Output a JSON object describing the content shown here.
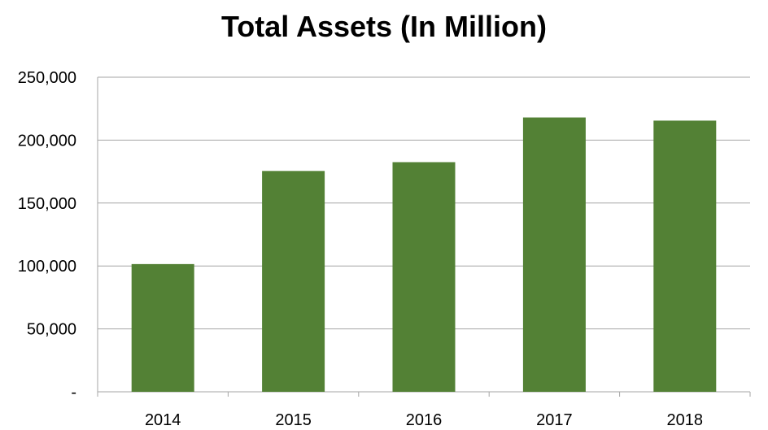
{
  "chart_data": {
    "type": "bar",
    "title": "Total Assets (In Million)",
    "categories": [
      "2014",
      "2015",
      "2016",
      "2017",
      "2018"
    ],
    "values": [
      101500,
      175500,
      182500,
      218000,
      215500
    ],
    "ylim": [
      0,
      250000
    ],
    "yticks": [
      0,
      50000,
      100000,
      150000,
      200000,
      250000
    ],
    "ytick_labels": [
      "-",
      "50,000",
      "100,000",
      "150,000",
      "200,000",
      "250,000"
    ],
    "xlabel": "",
    "ylabel": "",
    "grid": true,
    "bar_color": "#538135",
    "gridline_color": "#a6a6a6"
  }
}
